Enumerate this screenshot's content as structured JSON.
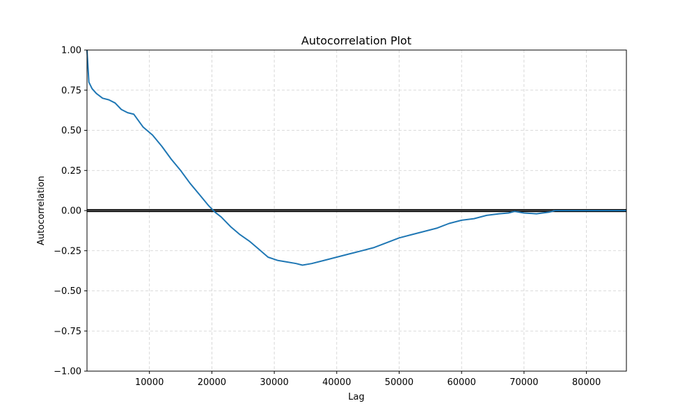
{
  "chart_data": {
    "type": "line",
    "title": "Autocorrelation Plot",
    "xlabel": "Lag",
    "ylabel": "Autocorrelation",
    "xlim": [
      1,
      86400
    ],
    "ylim": [
      -1.0,
      1.0
    ],
    "grid": true,
    "x_ticks": [
      10000,
      20000,
      30000,
      40000,
      50000,
      60000,
      70000,
      80000
    ],
    "x_tick_labels": [
      "10000",
      "20000",
      "30000",
      "40000",
      "50000",
      "60000",
      "70000",
      "80000"
    ],
    "y_ticks": [
      1.0,
      0.75,
      0.5,
      0.25,
      0.0,
      -0.25,
      -0.5,
      -0.75,
      -1.0
    ],
    "y_tick_labels": [
      "1.00",
      "0.75",
      "0.50",
      "0.25",
      "0.00",
      "−0.25",
      "−0.50",
      "−0.75",
      "−1.00"
    ],
    "series_color": "#1f77b4",
    "reference_line_color": "#000000",
    "band_color": "#808080",
    "confidence_band": [
      -0.0067,
      0.0067
    ],
    "x": [
      1,
      300,
      800,
      1500,
      2500,
      3500,
      4500,
      5500,
      6500,
      7500,
      9000,
      10500,
      12000,
      13500,
      15000,
      16500,
      18000,
      19500,
      20500,
      21500,
      23000,
      24500,
      26000,
      27500,
      29000,
      30500,
      32000,
      33500,
      34500,
      36000,
      38000,
      40000,
      42000,
      44000,
      46000,
      48000,
      50000,
      52000,
      54000,
      56000,
      58000,
      60000,
      62000,
      64000,
      66000,
      67500,
      68500,
      70000,
      72000,
      74000,
      75000,
      78000,
      82000,
      86400
    ],
    "values": [
      1.0,
      0.8,
      0.76,
      0.73,
      0.7,
      0.69,
      0.67,
      0.63,
      0.61,
      0.6,
      0.52,
      0.47,
      0.4,
      0.32,
      0.25,
      0.17,
      0.1,
      0.03,
      -0.01,
      -0.04,
      -0.1,
      -0.15,
      -0.19,
      -0.24,
      -0.29,
      -0.31,
      -0.32,
      -0.33,
      -0.34,
      -0.33,
      -0.31,
      -0.29,
      -0.27,
      -0.25,
      -0.23,
      -0.2,
      -0.17,
      -0.15,
      -0.13,
      -0.11,
      -0.08,
      -0.06,
      -0.05,
      -0.03,
      -0.02,
      -0.015,
      -0.005,
      -0.015,
      -0.02,
      -0.01,
      0.0,
      0.0,
      0.0,
      0.0
    ]
  }
}
